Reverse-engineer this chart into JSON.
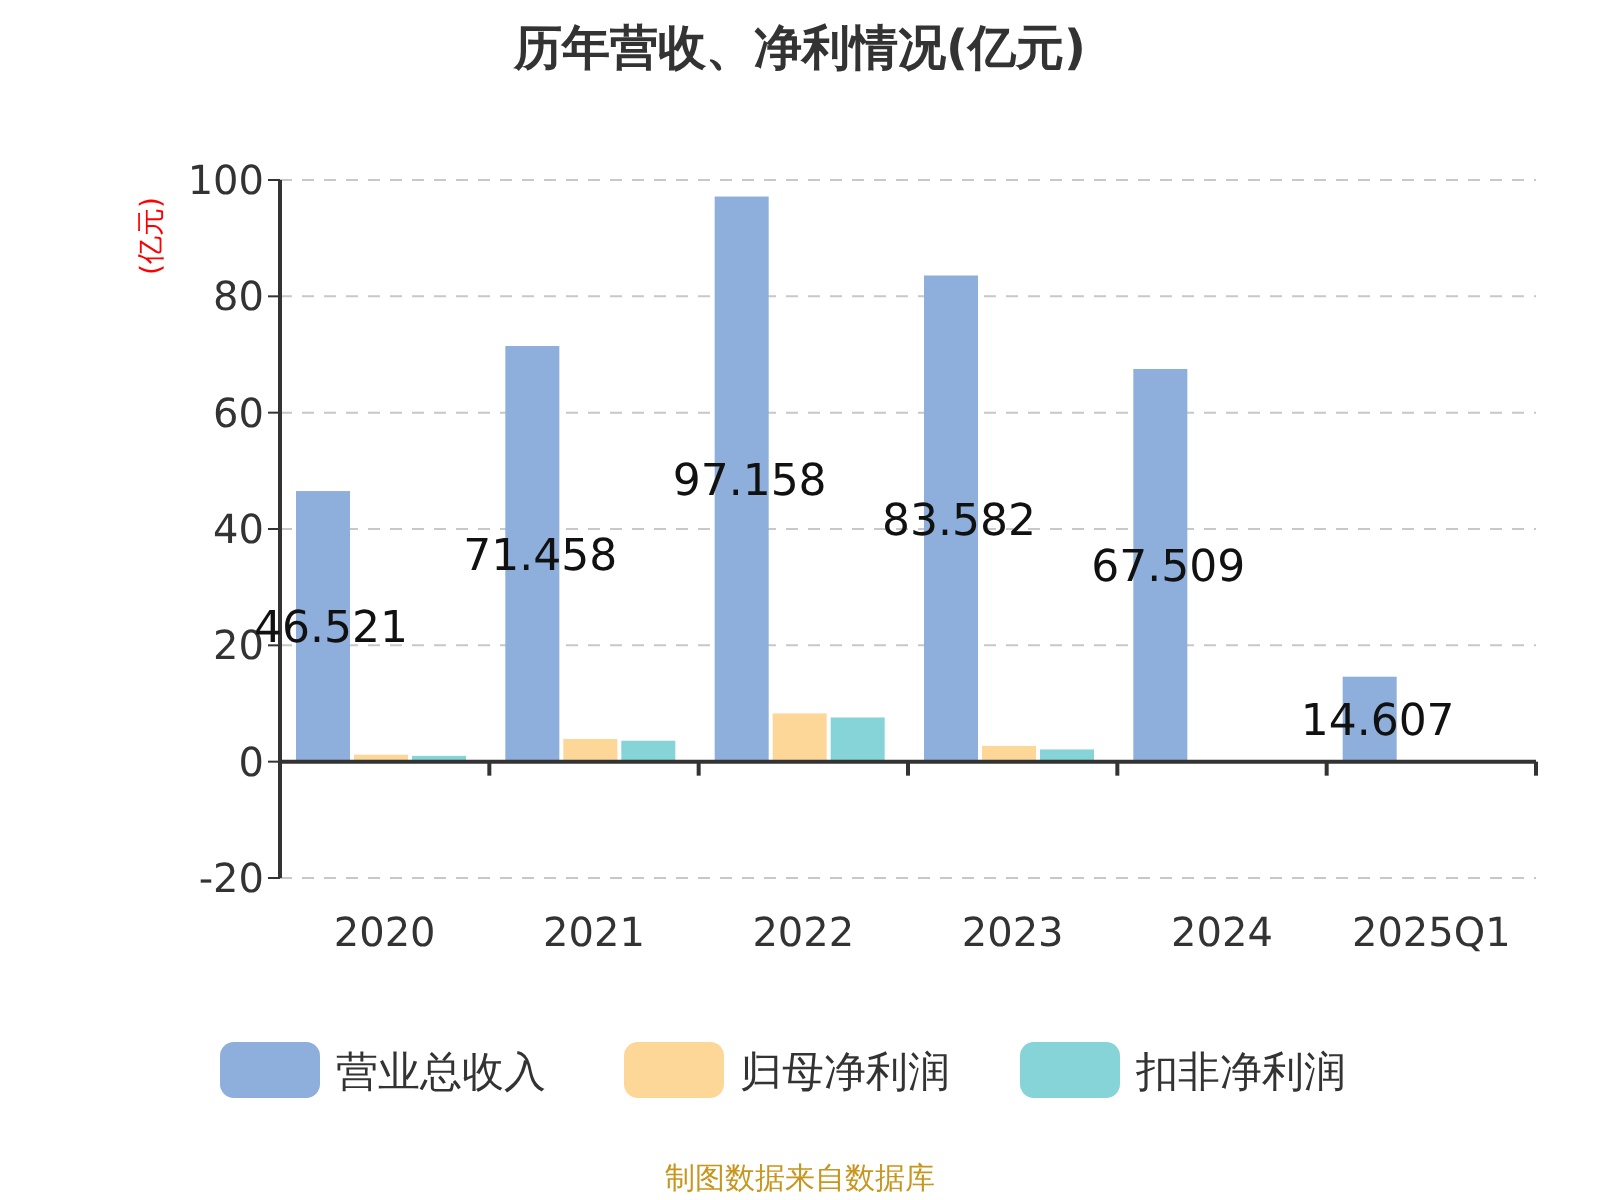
{
  "chart_data": {
    "type": "bar",
    "title": "历年营收、净利情况(亿元)",
    "ylabel": "(亿元)",
    "categories": [
      "2020",
      "2021",
      "2022",
      "2023",
      "2024",
      "2025Q1"
    ],
    "series": [
      {
        "name": "营业总收入",
        "color": "#8eaedb",
        "values": [
          46.521,
          71.458,
          97.158,
          83.582,
          67.509,
          14.607
        ],
        "value_labels": [
          "46.521",
          "71.458",
          "97.158",
          "83.582",
          "67.509",
          "14.607"
        ]
      },
      {
        "name": "归母净利润",
        "color": "#fdd797",
        "values": [
          1.2,
          3.9,
          8.3,
          2.7,
          null,
          null
        ]
      },
      {
        "name": "扣非净利润",
        "color": "#86d3d8",
        "values": [
          1.0,
          3.6,
          7.6,
          2.1,
          null,
          null
        ]
      }
    ],
    "ylim": [
      -20,
      100
    ],
    "yticks": [
      -20,
      0,
      20,
      40,
      60,
      80,
      100
    ],
    "grid": "y",
    "legend": "bottom",
    "annotations": [
      "制图数据来自数据库"
    ]
  }
}
